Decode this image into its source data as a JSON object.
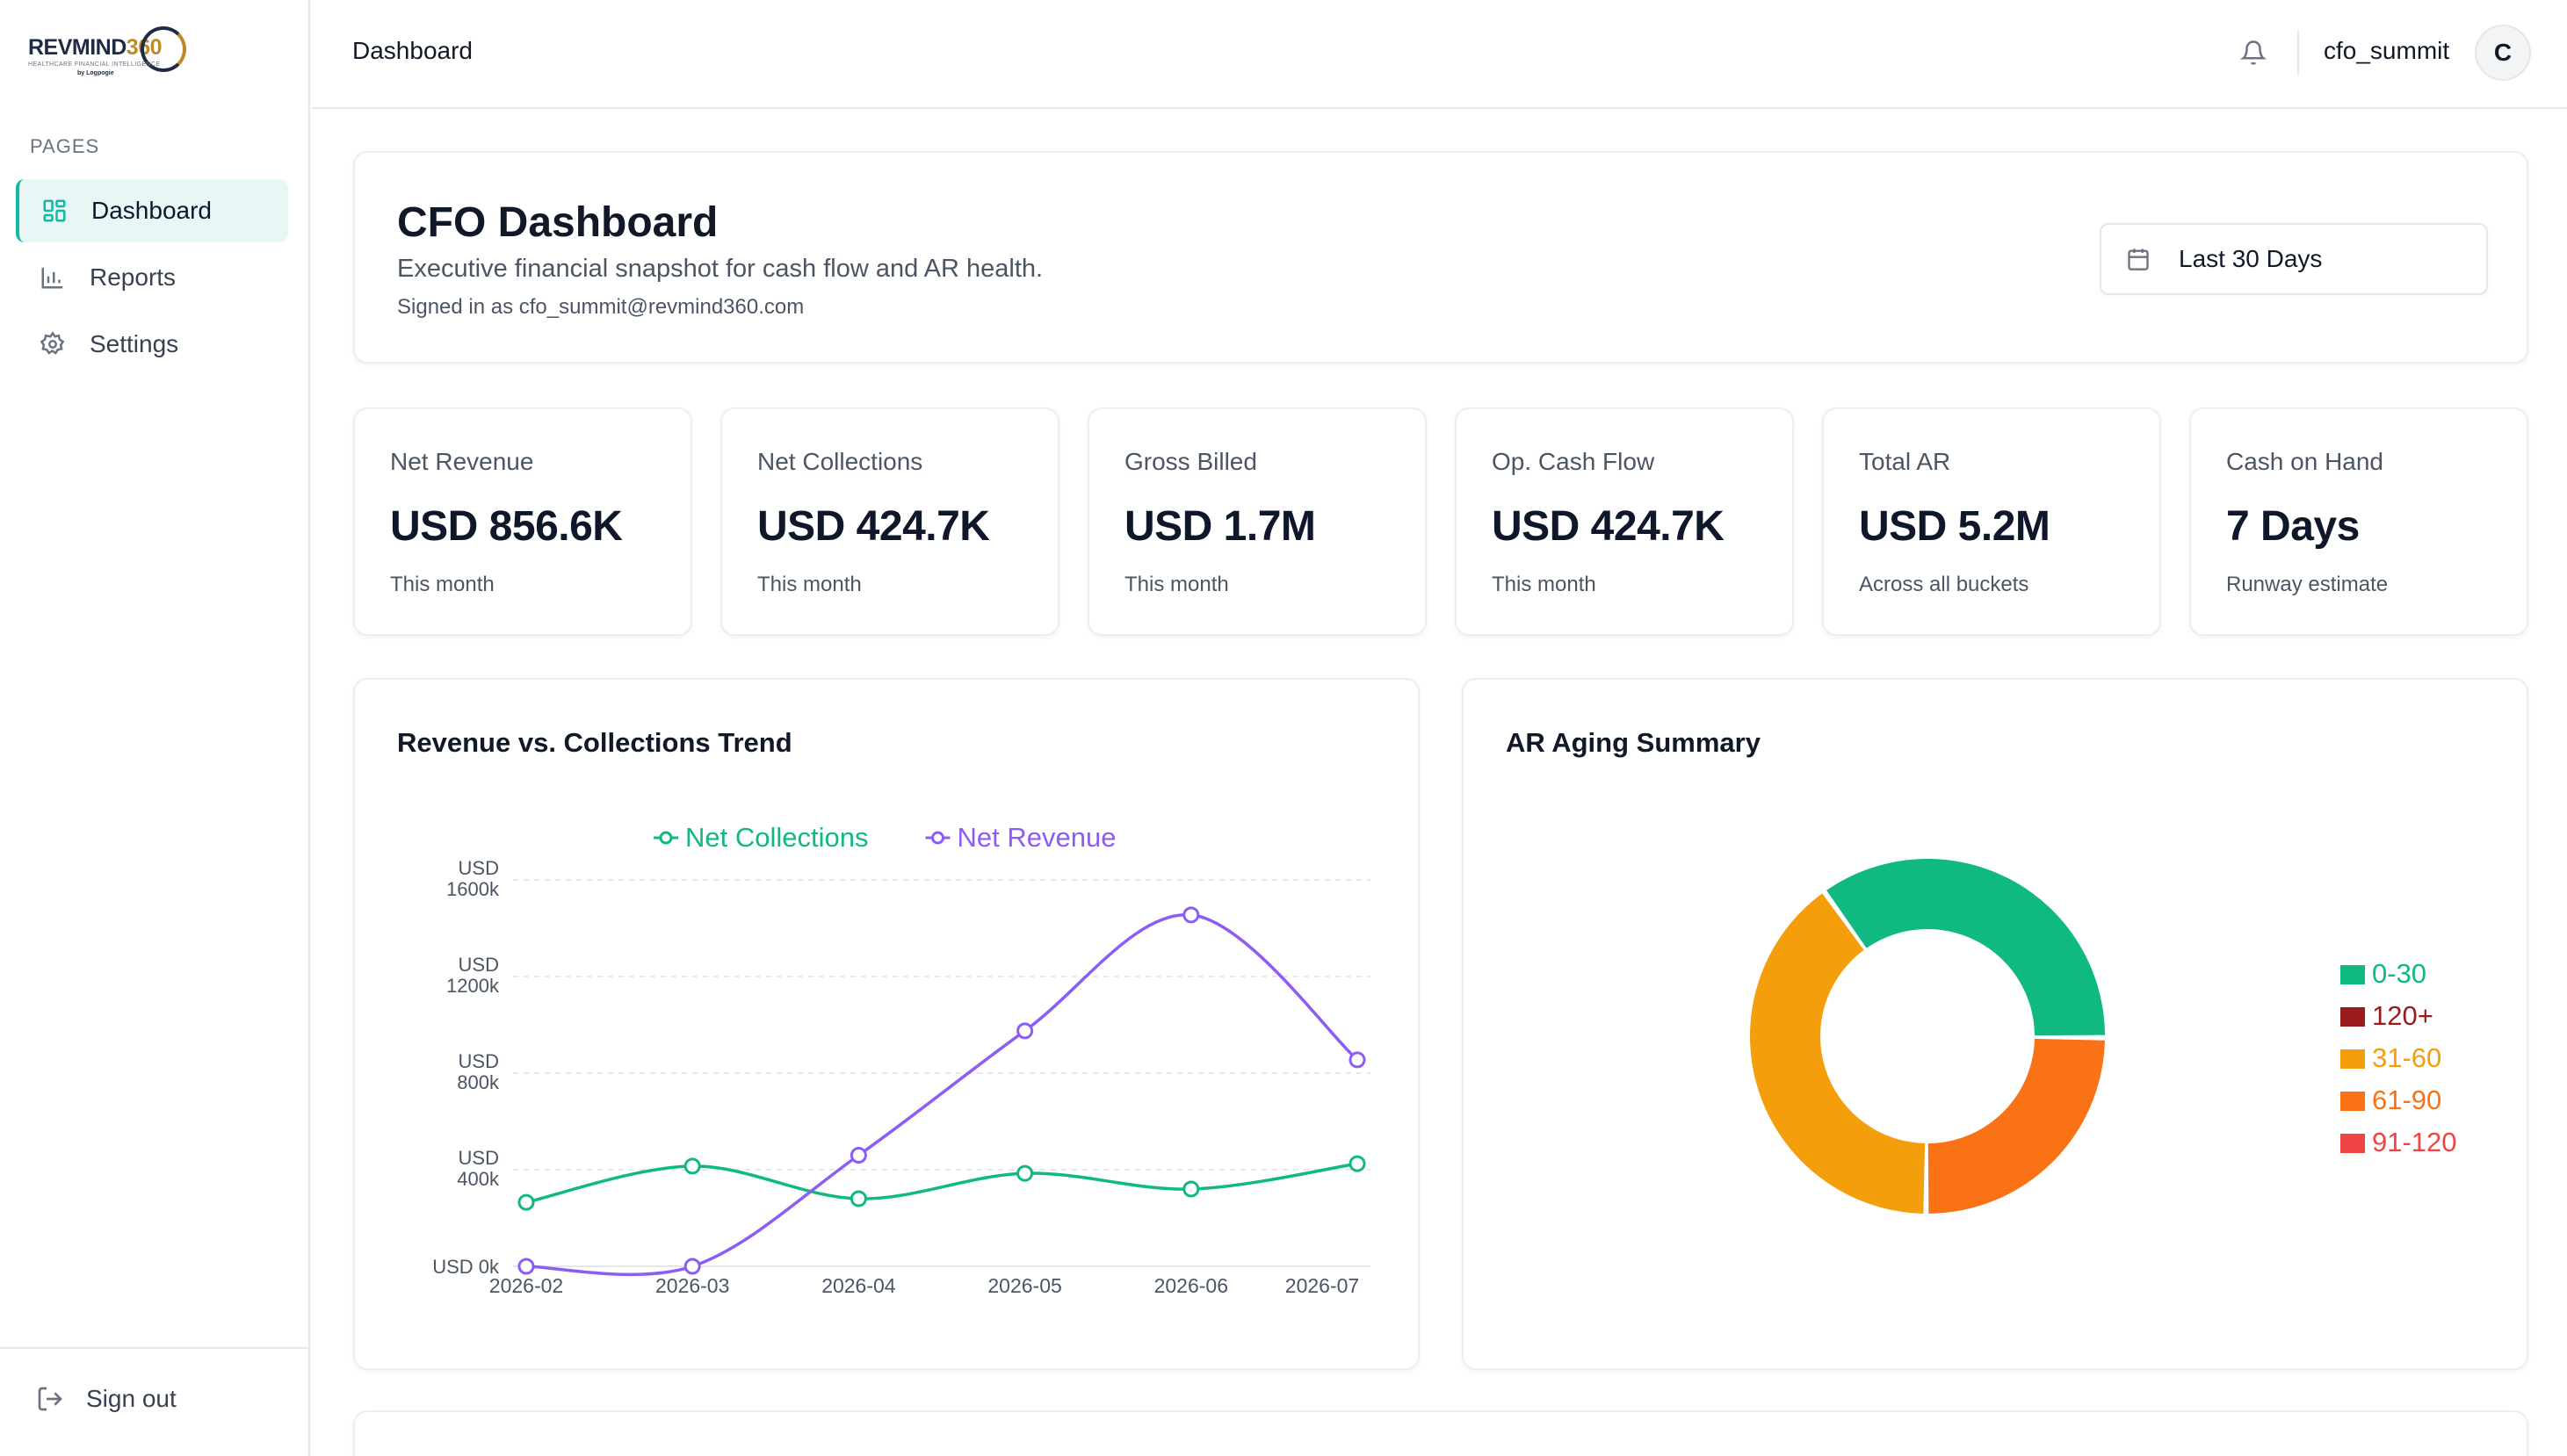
{
  "brand": {
    "logo_text": "REVMIND",
    "logo_number": "360",
    "logo_tagline": "HEALTHCARE FINANCIAL INTELLIGENCE",
    "logo_by": "by Logpogie"
  },
  "sidebar": {
    "section_label": "PAGES",
    "items": [
      {
        "label": "Dashboard",
        "icon": "dashboard-grid-icon",
        "active": true
      },
      {
        "label": "Reports",
        "icon": "bar-chart-icon",
        "active": false
      },
      {
        "label": "Settings",
        "icon": "gear-icon",
        "active": false
      }
    ],
    "signout_label": "Sign out",
    "signout_icon": "sign-out-icon"
  },
  "topbar": {
    "title": "Dashboard",
    "username": "cfo_summit",
    "avatar_initial": "C",
    "bell_icon": "bell-icon"
  },
  "header": {
    "title": "CFO Dashboard",
    "subtitle": "Executive financial snapshot for cash flow and AR health.",
    "signed_in": "Signed in as cfo_summit@revmind360.com",
    "date_range": "Last 30 Days",
    "date_icon": "calendar-icon"
  },
  "kpis": [
    {
      "label": "Net Revenue",
      "value": "USD 856.6K",
      "sub": "This month"
    },
    {
      "label": "Net Collections",
      "value": "USD 424.7K",
      "sub": "This month"
    },
    {
      "label": "Gross Billed",
      "value": "USD 1.7M",
      "sub": "This month"
    },
    {
      "label": "Op. Cash Flow",
      "value": "USD 424.7K",
      "sub": "This month"
    },
    {
      "label": "Total AR",
      "value": "USD 5.2M",
      "sub": "Across all buckets"
    },
    {
      "label": "Cash on Hand",
      "value": "7 Days",
      "sub": "Runway estimate"
    }
  ],
  "colors": {
    "accent": "#14b8a6",
    "collections": "#10b981",
    "revenue": "#8b5cf6"
  },
  "chart_data": [
    {
      "title": "Revenue vs. Collections Trend",
      "type": "line",
      "x": [
        "2026-02",
        "2026-03",
        "2026-04",
        "2026-05",
        "2026-06",
        "2026-07"
      ],
      "y_ticks": [
        {
          "value": 0,
          "label": "USD 0k"
        },
        {
          "value": 400,
          "label": "USD 400k"
        },
        {
          "value": 800,
          "label": "USD 800k"
        },
        {
          "value": 1200,
          "label": "USD 1200k"
        },
        {
          "value": 1600,
          "label": "USD 1600k"
        }
      ],
      "ylim": [
        0,
        1600
      ],
      "grid": true,
      "legend_position": "top",
      "series": [
        {
          "name": "Net Collections",
          "color": "#10b981",
          "values": [
            265,
            415,
            280,
            385,
            320,
            425
          ]
        },
        {
          "name": "Net Revenue",
          "color": "#8b5cf6",
          "values": [
            0,
            0,
            460,
            975,
            1455,
            855
          ]
        }
      ]
    },
    {
      "title": "AR Aging Summary",
      "type": "pie",
      "legend_position": "right",
      "slices": [
        {
          "label": "0-30",
          "value": 35,
          "color": "#10b981"
        },
        {
          "label": "120+",
          "value": 0,
          "color": "#991b1b"
        },
        {
          "label": "31-60",
          "value": 40,
          "color": "#f59e0b"
        },
        {
          "label": "61-90",
          "value": 25,
          "color": "#f97316"
        },
        {
          "label": "91-120",
          "value": 0,
          "color": "#ef4444"
        }
      ]
    }
  ]
}
